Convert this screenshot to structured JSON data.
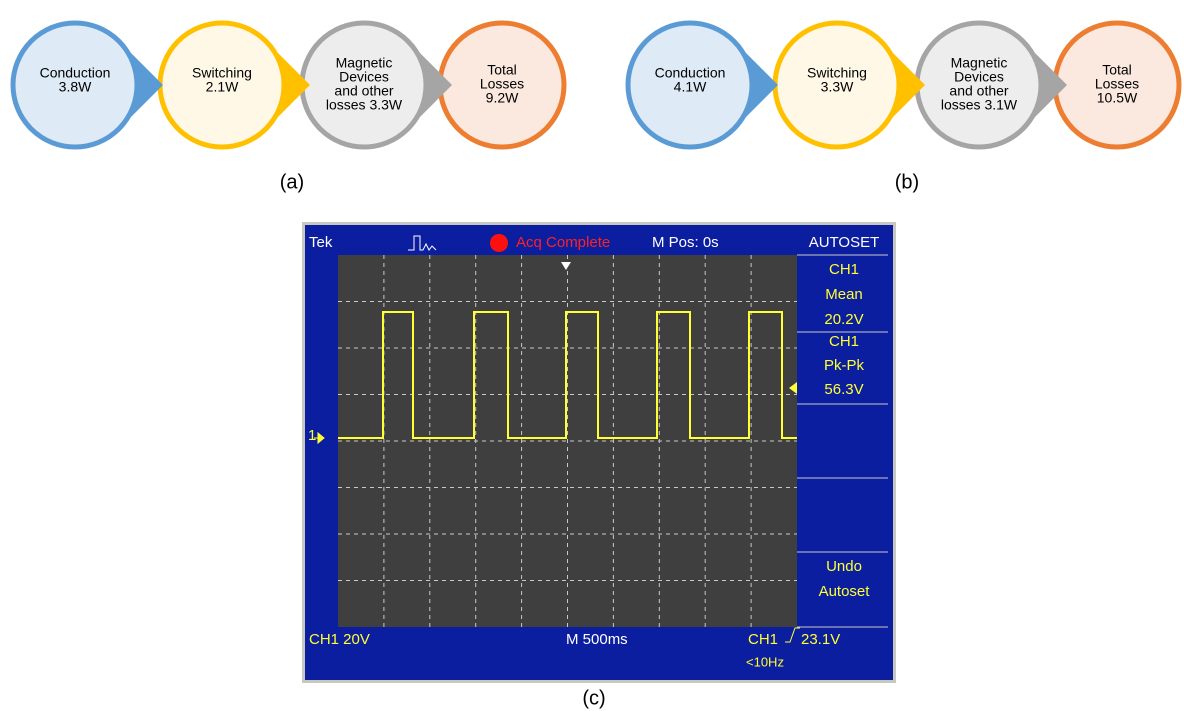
{
  "panels": [
    {
      "caption": "(a)",
      "nodes": [
        {
          "lines": [
            "Conduction",
            "3.8W"
          ]
        },
        {
          "lines": [
            "Switching",
            "2.1W"
          ]
        },
        {
          "lines": [
            "Magnetic",
            "Devices",
            "and other",
            "losses 3.3W"
          ]
        },
        {
          "lines": [
            "Total",
            "Losses",
            "9.2W"
          ]
        }
      ]
    },
    {
      "caption": "(b)",
      "nodes": [
        {
          "lines": [
            "Conduction",
            "4.1W"
          ]
        },
        {
          "lines": [
            "Switching",
            "3.3W"
          ]
        },
        {
          "lines": [
            "Magnetic",
            "Devices",
            "and other",
            "losses 3.1W"
          ]
        },
        {
          "lines": [
            "Total",
            "Losses",
            "10.5W"
          ]
        }
      ]
    }
  ],
  "scope": {
    "caption": "(c)",
    "brand": "Tek",
    "status": "Acq Complete",
    "position": "M Pos: 0s",
    "menu_title": "AUTOSET",
    "menu": [
      [
        "CH1",
        "Mean",
        "20.2V"
      ],
      [
        "CH1",
        "Pk-Pk",
        "56.3V"
      ],
      [
        "Undo",
        "Autoset"
      ]
    ],
    "channel_marker": "1",
    "channel_scale": "CH1 20V",
    "timebase": "M 500ms",
    "trigger_source": "CH1",
    "trigger_level": "23.1V",
    "frequency": "<10Hz"
  }
}
